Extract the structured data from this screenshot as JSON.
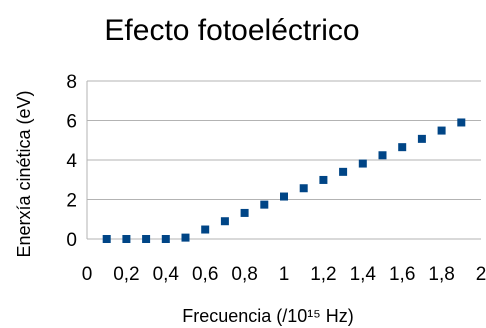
{
  "chart_data": {
    "type": "scatter",
    "title": "Efecto fotoeléctrico",
    "xlabel": "Frecuencia (/10¹⁵ Hz)",
    "ylabel": "Enerxía cinética (eV)",
    "xlim": [
      0,
      2
    ],
    "ylim": [
      0,
      8
    ],
    "x_ticks": [
      0,
      0.2,
      0.4,
      0.6,
      0.8,
      1,
      1.2,
      1.4,
      1.6,
      1.8,
      2
    ],
    "x_tick_labels": [
      "0",
      "0,2",
      "0,4",
      "0,6",
      "0,8",
      "1",
      "1,2",
      "1,4",
      "1,6",
      "1,8",
      "2"
    ],
    "y_ticks": [
      0,
      2,
      4,
      6,
      8
    ],
    "y_tick_labels": [
      "0",
      "2",
      "4",
      "6",
      "8"
    ],
    "grid": "horizontal",
    "marker_color": "#004586",
    "series": [
      {
        "x": [
          0.1,
          0.2,
          0.3,
          0.4,
          0.5,
          0.6,
          0.7,
          0.8,
          0.9,
          1.0,
          1.1,
          1.2,
          1.3,
          1.4,
          1.5,
          1.6,
          1.7,
          1.8,
          1.9
        ],
        "y": [
          0,
          0,
          0,
          0,
          0.07,
          0.48,
          0.9,
          1.32,
          1.74,
          2.15,
          2.57,
          2.99,
          3.4,
          3.82,
          4.24,
          4.65,
          5.07,
          5.49,
          5.9
        ]
      }
    ]
  }
}
